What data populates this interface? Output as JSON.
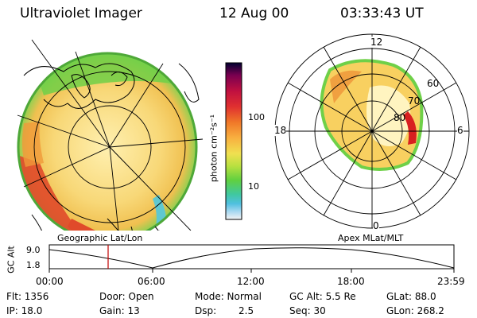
{
  "header": {
    "instrument": "Ultraviolet Imager",
    "date": "12 Aug 00",
    "time": "03:33:43 UT"
  },
  "geo_panel": {
    "label": "Geographic Lat/Lon",
    "colors": {
      "edge": "#5fc93c",
      "fill": "#f8d878",
      "hot": "#e03820",
      "mid": "#f0a040"
    }
  },
  "apex_panel": {
    "label": "Apex MLat/MLT",
    "mlt_labels": {
      "top": "12",
      "left": "18",
      "right": "6",
      "bottom": "0"
    },
    "lat_labels": [
      "60",
      "70",
      "80"
    ]
  },
  "colorbar": {
    "unit_label": "photon cm⁻²s⁻¹",
    "ticks": [
      "100",
      "10"
    ],
    "gradient": [
      "#000030",
      "#7a0050",
      "#c01040",
      "#e03030",
      "#f07828",
      "#f8b040",
      "#f0e050",
      "#b8e040",
      "#60d040",
      "#40c8a0",
      "#50c0e0",
      "#a8d8f0",
      "#f4f4f4"
    ]
  },
  "altitude_plot": {
    "ylabel": "GC Alt",
    "yticks": [
      "9.0",
      "1.8"
    ],
    "xticks": [
      "00:00",
      "06:00",
      "12:00",
      "18:00",
      "23:59"
    ],
    "current_time_marker_color": "#c00000"
  },
  "status": {
    "flt": "Flt: 1356",
    "ip": "IP: 18.0",
    "door": "Door: Open",
    "gain": "Gain: 13",
    "mode": "Mode: Normal",
    "dsp_label": "Dsp:",
    "dsp_value": "2.5",
    "gc_alt": "GC Alt: 5.5 Re",
    "seq": "Seq: 30",
    "glat": "GLat: 88.0",
    "glon": "GLon: 268.2"
  }
}
